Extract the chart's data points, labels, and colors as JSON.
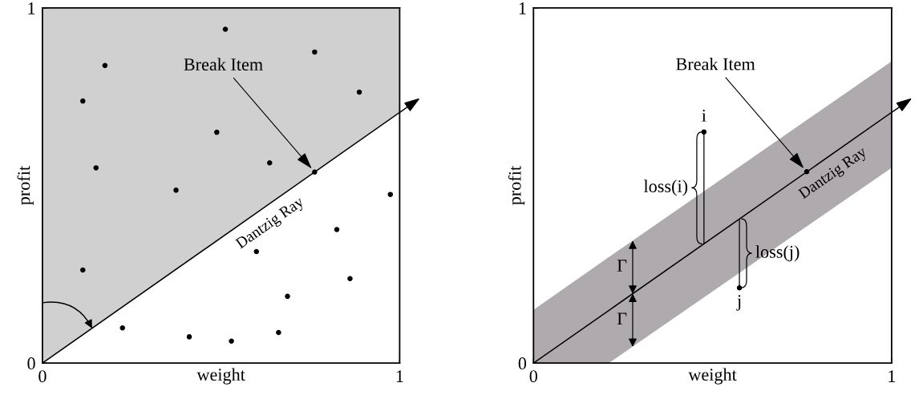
{
  "chart_data": [
    {
      "type": "scatter",
      "xlabel": "weight",
      "ylabel": "profit",
      "xlim": [
        0,
        1
      ],
      "ylim": [
        0,
        1
      ],
      "xticks": [
        0,
        1
      ],
      "yticks": [
        0,
        1
      ],
      "grid": false,
      "series": [
        {
          "type": "line",
          "x": [
            0,
            1
          ],
          "values": [
            0,
            0.706
          ],
          "lower": [
            0,
            0.706
          ],
          "upper": [
            1,
            1
          ],
          "color": "#000000",
          "colors": [
            "#d0d0d0",
            "#d0d0d0"
          ]
        },
        {
          "marker": "circle",
          "x": [
            0.512,
            0.175,
            0.762,
            0.113,
            0.887,
            0.488,
            0.636,
            0.15,
            0.762,
            0.374,
            0.974,
            0.824,
            0.599,
            0.113,
            0.861,
            0.686,
            0.224,
            0.411,
            0.661,
            0.529
          ],
          "values": [
            0.94,
            0.838,
            0.876,
            0.738,
            0.763,
            0.65,
            0.564,
            0.55,
            0.538,
            0.487,
            0.475,
            0.376,
            0.314,
            0.262,
            0.238,
            0.188,
            0.099,
            0.074,
            0.086,
            0.062
          ],
          "color": "#000000"
        }
      ],
      "annotations": [
        {
          "text": "Break Item",
          "x": 0.762,
          "y": 0.538
        },
        "Dantzig Ray"
      ]
    },
    {
      "type": "scatter",
      "xlabel": "weight",
      "ylabel": "profit",
      "xlim": [
        0,
        1
      ],
      "ylim": [
        0,
        1
      ],
      "xticks": [
        0,
        1
      ],
      "yticks": [
        0,
        1
      ],
      "grid": false,
      "series": [
        {
          "type": "line",
          "x": [
            0,
            0.21,
            1
          ],
          "values": [
            0,
            0.148,
            0.706
          ],
          "lower": [
            0,
            0,
            0.55
          ],
          "upper": [
            0.15,
            0.298,
            0.85
          ],
          "color": "#000000",
          "colors": [
            "#aeaaae",
            "#aeaaae",
            "#aeaaae"
          ]
        },
        {
          "marker": "circle",
          "x": [
            0.476,
            0.763,
            0.575
          ],
          "values": [
            0.651,
            0.539,
            0.212
          ],
          "errors": [
            [
              0.336,
              0.651
            ],
            null,
            [
              0.212,
              0.406
            ]
          ],
          "color": "#000000"
        }
      ],
      "annotations": [
        {
          "text": "Break Item",
          "x": 0.763,
          "y": 0.539
        },
        "Dantzig Ray",
        {
          "text": "i",
          "x": 0.476,
          "y": 0.651
        },
        {
          "text": "j",
          "x": 0.575,
          "y": 0.212
        },
        "loss(i)",
        "loss(j)",
        "Γ",
        "Γ"
      ]
    }
  ]
}
